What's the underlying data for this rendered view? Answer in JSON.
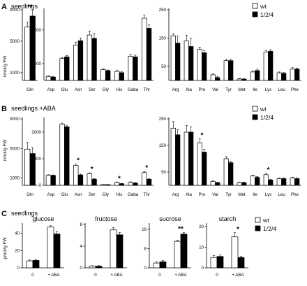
{
  "colors": {
    "wt": "#ffffff",
    "mutant": "#000000",
    "stroke": "#000000"
  },
  "legend": [
    {
      "name": "wt",
      "fill": "#ffffff"
    },
    {
      "name": "1/2/4",
      "fill": "#000000"
    }
  ],
  "panels": {
    "A": {
      "label": "A",
      "title": "seedlings",
      "ylabel": "nmol/g FW"
    },
    "B": {
      "label": "B",
      "title": "seedlings +ABA",
      "ylabel": "nmol/g FW"
    },
    "C": {
      "label": "C",
      "title": "seedlings",
      "ylabel": "µmol/g FW"
    }
  },
  "chart_data": [
    {
      "id": "A1",
      "type": "bar",
      "panel": "A",
      "ylim": [
        0,
        9000
      ],
      "yticks": [
        1000,
        5000,
        9000
      ],
      "categories": [
        "Gln"
      ],
      "series": [
        {
          "name": "wt",
          "values": [
            6800
          ],
          "err": [
            600
          ]
        },
        {
          "name": "1/2/4",
          "values": [
            8200
          ],
          "err": [
            700
          ]
        }
      ],
      "annotations": [
        {
          "category": "Gln",
          "text": "**"
        }
      ]
    },
    {
      "id": "A2",
      "type": "bar",
      "panel": "A",
      "ylim": [
        0,
        2100
      ],
      "yticks": [
        500,
        1500
      ],
      "categories": [
        "Asp",
        "Glu",
        "Asn",
        "Ser",
        "Gly",
        "His",
        "Gaba",
        "Thr"
      ],
      "series": [
        {
          "name": "wt",
          "values": [
            120,
            650,
            1050,
            1350,
            320,
            270,
            720,
            1850
          ],
          "err": [
            20,
            30,
            90,
            120,
            20,
            25,
            60,
            90
          ]
        },
        {
          "name": "1/2/4",
          "values": [
            100,
            700,
            1180,
            1250,
            290,
            230,
            700,
            1550
          ],
          "err": [
            15,
            40,
            80,
            150,
            20,
            25,
            50,
            110
          ]
        }
      ],
      "annotations": []
    },
    {
      "id": "A3",
      "type": "bar",
      "panel": "A",
      "ylim": [
        0,
        250
      ],
      "yticks": [
        50,
        150,
        250
      ],
      "categories": [
        "Arg",
        "Ala",
        "Pro",
        "Val",
        "Tyr",
        "Met",
        "Ile",
        "Lys",
        "Leu",
        "Phe"
      ],
      "series": [
        {
          "name": "wt",
          "values": [
            158,
            140,
            110,
            20,
            70,
            5,
            30,
            100,
            27,
            40
          ],
          "err": [
            8,
            20,
            8,
            3,
            5,
            2,
            3,
            6,
            3,
            5
          ]
        },
        {
          "name": "1/2/4",
          "values": [
            132,
            120,
            98,
            10,
            70,
            5,
            35,
            103,
            25,
            40
          ],
          "err": [
            25,
            30,
            7,
            3,
            5,
            1,
            5,
            6,
            3,
            4
          ]
        }
      ],
      "annotations": []
    },
    {
      "id": "B1",
      "type": "bar",
      "panel": "B",
      "ylim": [
        0,
        9000
      ],
      "yticks": [
        1000,
        5000,
        9000
      ],
      "categories": [
        "Gln"
      ],
      "series": [
        {
          "name": "wt",
          "values": [
            4900
          ],
          "err": [
            900
          ]
        },
        {
          "name": "1/2/4",
          "values": [
            4300
          ],
          "err": [
            800
          ]
        }
      ],
      "annotations": []
    },
    {
      "id": "B2",
      "type": "bar",
      "panel": "B",
      "ylim": [
        0,
        2500
      ],
      "yticks": [
        0,
        1000,
        2000
      ],
      "categories": [
        "Asp",
        "Glu",
        "Asn",
        "Ser",
        "Gly",
        "His",
        "Gaba",
        "Thr"
      ],
      "series": [
        {
          "name": "wt",
          "values": [
            380,
            2300,
            750,
            440,
            30,
            110,
            110,
            480
          ],
          "err": [
            20,
            40,
            50,
            30,
            5,
            15,
            20,
            40
          ]
        },
        {
          "name": "1/2/4",
          "values": [
            370,
            2200,
            390,
            230,
            25,
            60,
            85,
            230
          ],
          "err": [
            20,
            40,
            30,
            25,
            5,
            10,
            15,
            20
          ]
        }
      ],
      "annotations": [
        {
          "category": "Asn",
          "text": "*"
        },
        {
          "category": "Ser",
          "text": "*"
        },
        {
          "category": "His",
          "text": "*"
        },
        {
          "category": "Thr",
          "text": "*"
        }
      ]
    },
    {
      "id": "B3",
      "type": "bar",
      "panel": "B",
      "ylim": [
        0,
        250
      ],
      "yticks": [
        50,
        150,
        250
      ],
      "categories": [
        "Arg",
        "Ala",
        "Pro",
        "Val",
        "Tyr",
        "Met",
        "Ile",
        "Lys",
        "Leu",
        "Phe"
      ],
      "series": [
        {
          "name": "wt",
          "values": [
            215,
            200,
            160,
            15,
            100,
            10,
            35,
            40,
            25,
            28
          ],
          "err": [
            25,
            25,
            15,
            3,
            8,
            2,
            3,
            5,
            3,
            3
          ]
        },
        {
          "name": "1/2/4",
          "values": [
            190,
            200,
            125,
            10,
            85,
            10,
            30,
            20,
            25,
            25
          ],
          "err": [
            20,
            20,
            10,
            2,
            6,
            2,
            3,
            3,
            3,
            3
          ]
        }
      ],
      "annotations": [
        {
          "category": "Pro",
          "text": "*"
        },
        {
          "category": "Lys",
          "text": "*"
        }
      ]
    },
    {
      "id": "C1",
      "type": "bar",
      "panel": "C",
      "title": "glucose",
      "ylim": [
        0,
        50
      ],
      "yticks": [
        0,
        20,
        40
      ],
      "categories": [
        "0",
        "+ ABA"
      ],
      "series": [
        {
          "name": "wt",
          "values": [
            8,
            47
          ],
          "err": [
            1,
            1.5
          ]
        },
        {
          "name": "1/2/4",
          "values": [
            8.5,
            39
          ],
          "err": [
            1,
            3
          ]
        }
      ],
      "annotations": []
    },
    {
      "id": "C2",
      "type": "bar",
      "panel": "C",
      "title": "fructose",
      "ylim": [
        0,
        8
      ],
      "yticks": [
        0,
        4,
        8
      ],
      "categories": [
        "0",
        "+ ABA"
      ],
      "series": [
        {
          "name": "wt",
          "values": [
            0.3,
            7
          ],
          "err": [
            0.1,
            0.4
          ]
        },
        {
          "name": "1/2/4",
          "values": [
            0.3,
            6.1
          ],
          "err": [
            0.1,
            0.4
          ]
        }
      ],
      "annotations": []
    },
    {
      "id": "C3",
      "type": "bar",
      "panel": "C",
      "title": "sucrose",
      "ylim": [
        0,
        18
      ],
      "yticks": [
        0,
        8,
        16
      ],
      "categories": [
        "0",
        "+ ABA"
      ],
      "series": [
        {
          "name": "wt",
          "values": [
            2,
            11
          ],
          "err": [
            0.5,
            0.5
          ]
        },
        {
          "name": "1/2/4",
          "values": [
            2.5,
            14
          ],
          "err": [
            0.5,
            0.6
          ]
        }
      ],
      "annotations": [
        {
          "category": "+ ABA",
          "text": "**"
        }
      ]
    },
    {
      "id": "C4",
      "type": "bar",
      "panel": "C",
      "title": "starch",
      "ylim": [
        0,
        21
      ],
      "yticks": [
        0,
        10,
        20
      ],
      "categories": [
        "0",
        "+ ABA"
      ],
      "series": [
        {
          "name": "wt",
          "values": [
            5,
            15
          ],
          "err": [
            1,
            2
          ]
        },
        {
          "name": "1/2/4",
          "values": [
            5.5,
            5
          ],
          "err": [
            0.8,
            0.5
          ]
        }
      ],
      "annotations": [
        {
          "category": "+ ABA",
          "text": "*"
        }
      ]
    }
  ]
}
